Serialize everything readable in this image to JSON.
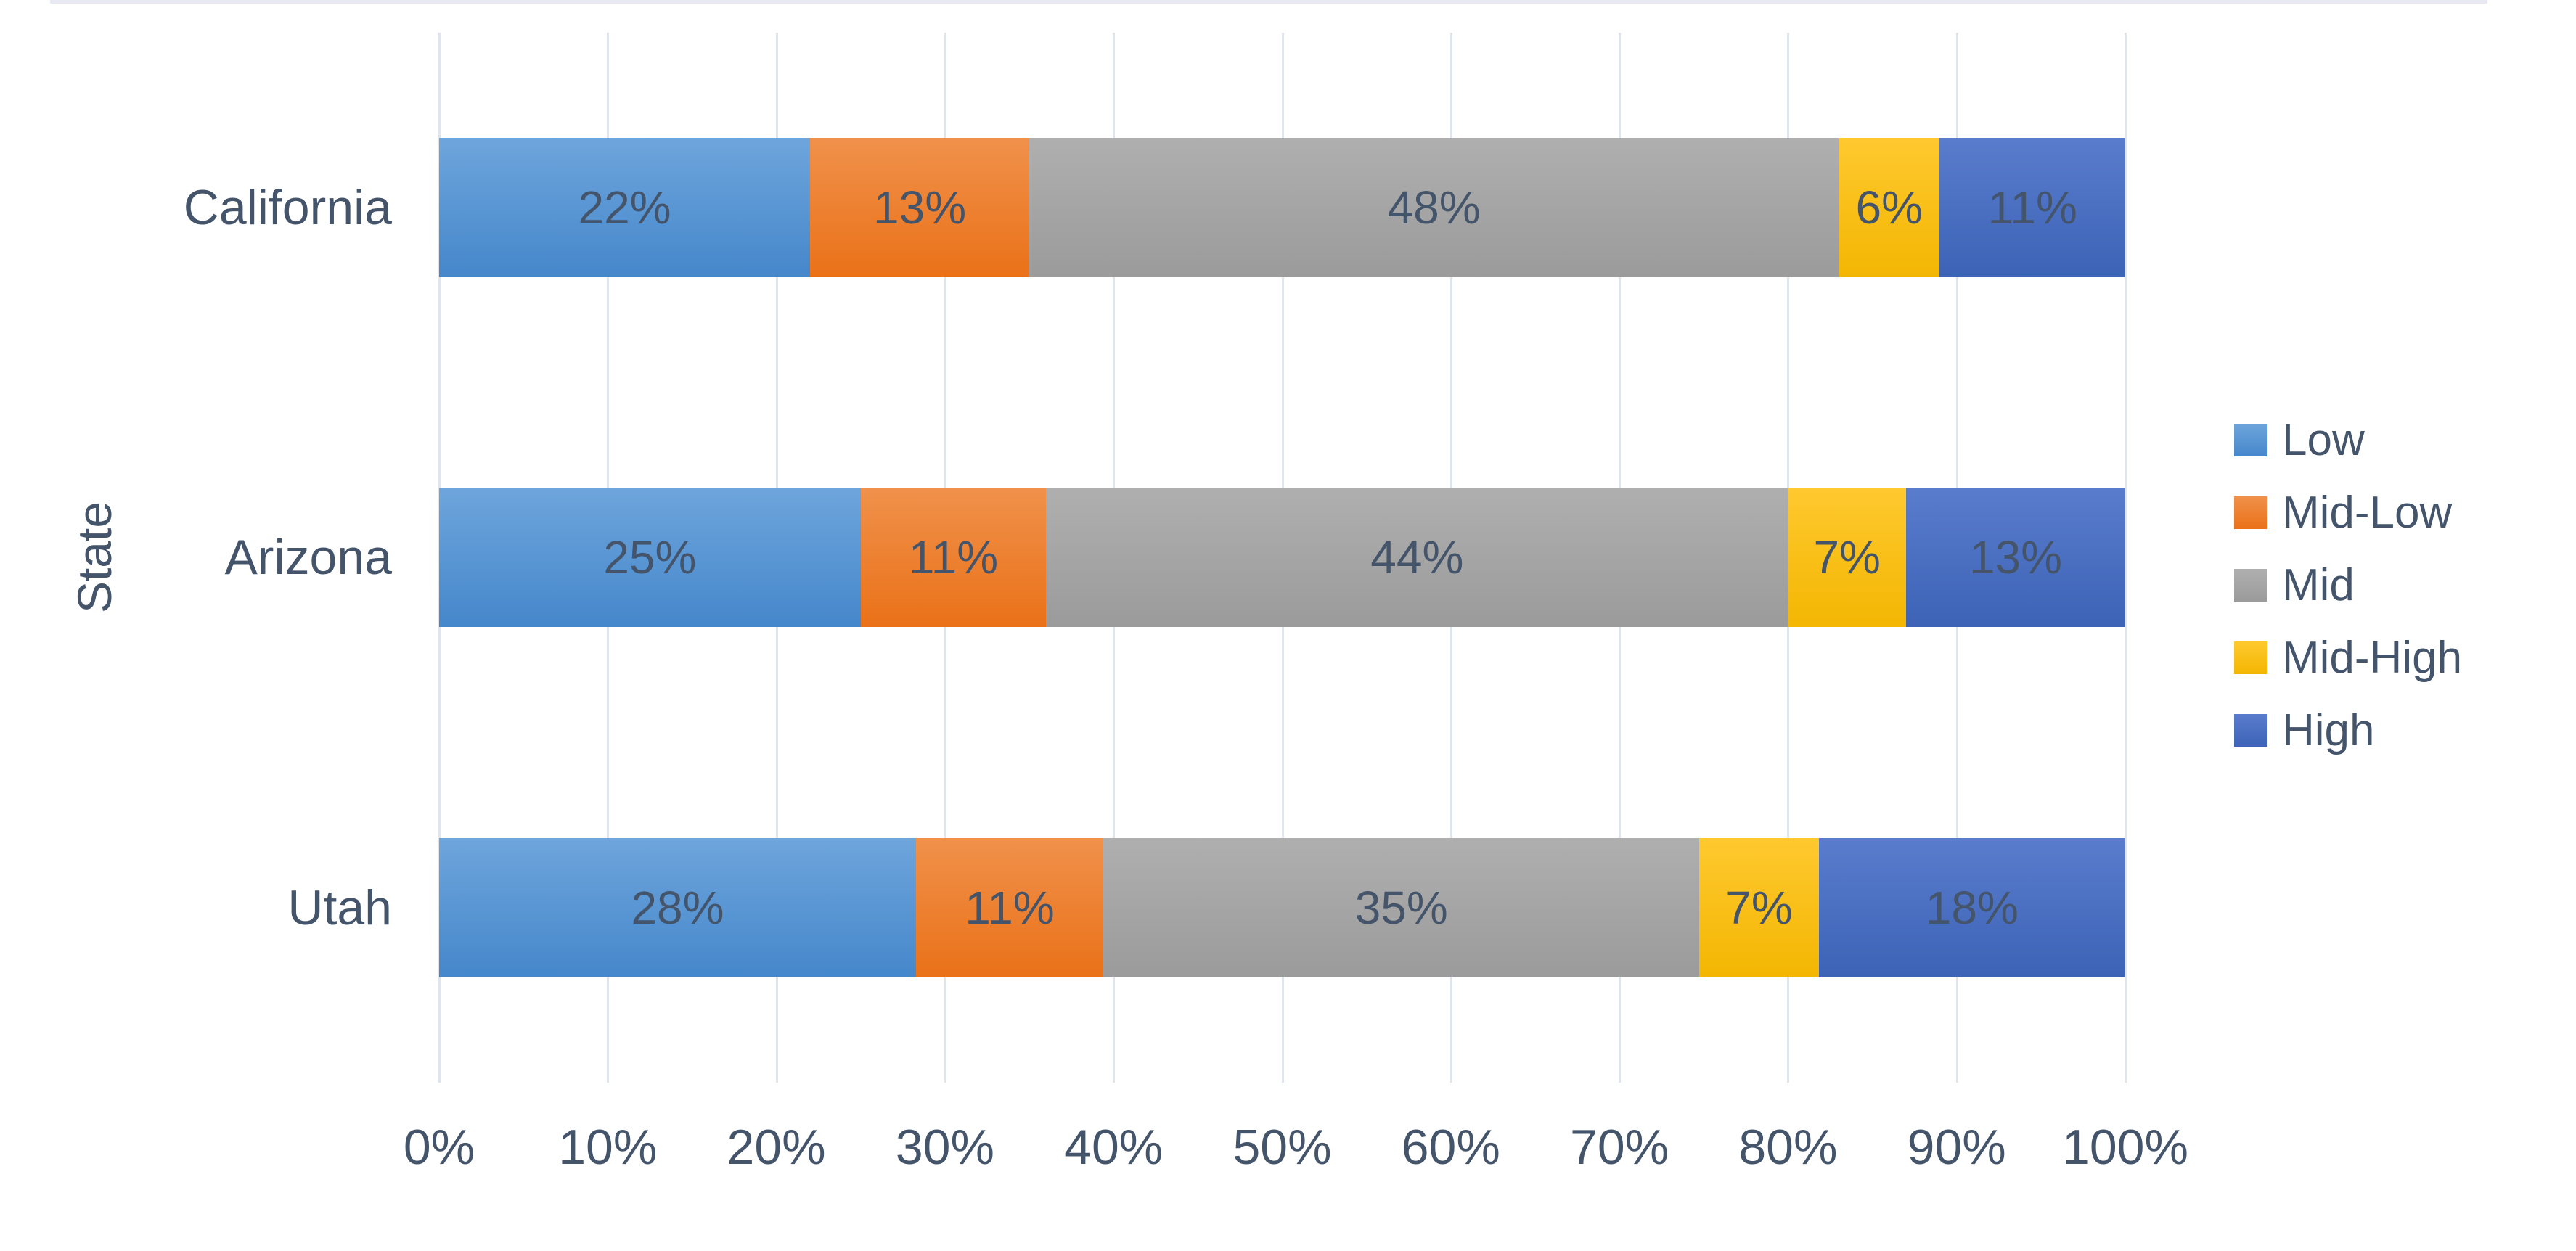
{
  "chart_data": {
    "type": "bar",
    "orientation": "horizontal",
    "stacked": true,
    "title": "",
    "xlabel": "",
    "ylabel": "State",
    "categories": [
      "California",
      "Arizona",
      "Utah"
    ],
    "series": [
      {
        "name": "Low",
        "color": "#5B9BD5",
        "gradient_top": "#6EA5DC",
        "gradient_bottom": "#4587CB",
        "values": [
          22,
          25,
          28
        ],
        "labels": [
          "22%",
          "25%",
          "28%"
        ]
      },
      {
        "name": "Mid-Low",
        "color": "#ED7D31",
        "gradient_top": "#F0914B",
        "gradient_bottom": "#EA7118",
        "values": [
          13,
          11,
          11
        ],
        "labels": [
          "13%",
          "11%",
          "11%"
        ]
      },
      {
        "name": "Mid",
        "color": "#A5A5A5",
        "gradient_top": "#AFAFAF",
        "gradient_bottom": "#9B9B9B",
        "values": [
          48,
          44,
          35
        ],
        "labels": [
          "48%",
          "44%",
          "35%"
        ]
      },
      {
        "name": "Mid-High",
        "color": "#FFC000",
        "gradient_top": "#FFC92F",
        "gradient_bottom": "#F3B602",
        "values": [
          6,
          7,
          7
        ],
        "labels": [
          "6%",
          "7%",
          "7%"
        ]
      },
      {
        "name": "High",
        "color": "#4472C4",
        "gradient_top": "#5A7CCD",
        "gradient_bottom": "#3C63B6",
        "values": [
          11,
          13,
          18
        ],
        "labels": [
          "11%",
          "13%",
          "18%"
        ]
      }
    ],
    "x_ticks": [
      "0%",
      "10%",
      "20%",
      "30%",
      "40%",
      "50%",
      "60%",
      "70%",
      "80%",
      "90%",
      "100%"
    ],
    "xlim": [
      0,
      100
    ],
    "grid": "vertical-major",
    "legend_position": "right"
  },
  "colors": {
    "text": "#44546A",
    "data_label": "#44546A",
    "gridline": "#E0E4EB",
    "top_rule": "#E8E9F2",
    "background": "#FFFFFF"
  }
}
